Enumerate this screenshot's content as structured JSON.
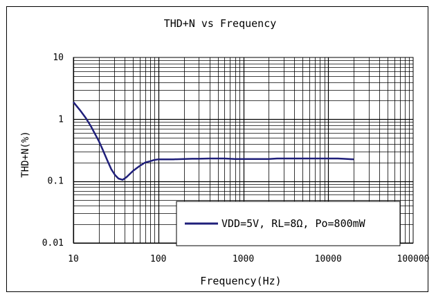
{
  "chart_data": {
    "type": "line",
    "title": "THD+N vs Frequency",
    "xlabel": "Frequency(Hz)",
    "ylabel": "THD+N(%)",
    "x_scale": "log",
    "y_scale": "log",
    "xlim": [
      10,
      100000
    ],
    "ylim": [
      0.01,
      10
    ],
    "x_ticks": [
      "10",
      "100",
      "1000",
      "10000",
      "100000"
    ],
    "y_ticks": [
      "0.01",
      "0.1",
      "1",
      "10"
    ],
    "grid": true,
    "legend_position": "bottom-right",
    "series": [
      {
        "name": "VDD=5V, RL=8Ω, Po=800mW",
        "color": "#1f1f7a",
        "x": [
          10,
          12,
          14,
          16,
          18,
          20,
          22,
          25,
          28,
          31,
          34,
          38,
          42,
          46,
          50,
          55,
          60,
          70,
          80,
          90,
          100,
          120,
          150,
          200,
          250,
          300,
          400,
          600,
          800,
          1000,
          1500,
          2000,
          2500,
          3000,
          5000,
          8000,
          10000,
          13000,
          15000,
          17000,
          20000
        ],
        "y": [
          1.9,
          1.4,
          1.05,
          0.78,
          0.58,
          0.44,
          0.33,
          0.22,
          0.155,
          0.125,
          0.11,
          0.105,
          0.115,
          0.13,
          0.145,
          0.16,
          0.175,
          0.2,
          0.21,
          0.22,
          0.225,
          0.225,
          0.225,
          0.228,
          0.23,
          0.23,
          0.232,
          0.232,
          0.228,
          0.228,
          0.228,
          0.228,
          0.232,
          0.232,
          0.232,
          0.232,
          0.232,
          0.232,
          0.23,
          0.228,
          0.225
        ]
      }
    ]
  }
}
